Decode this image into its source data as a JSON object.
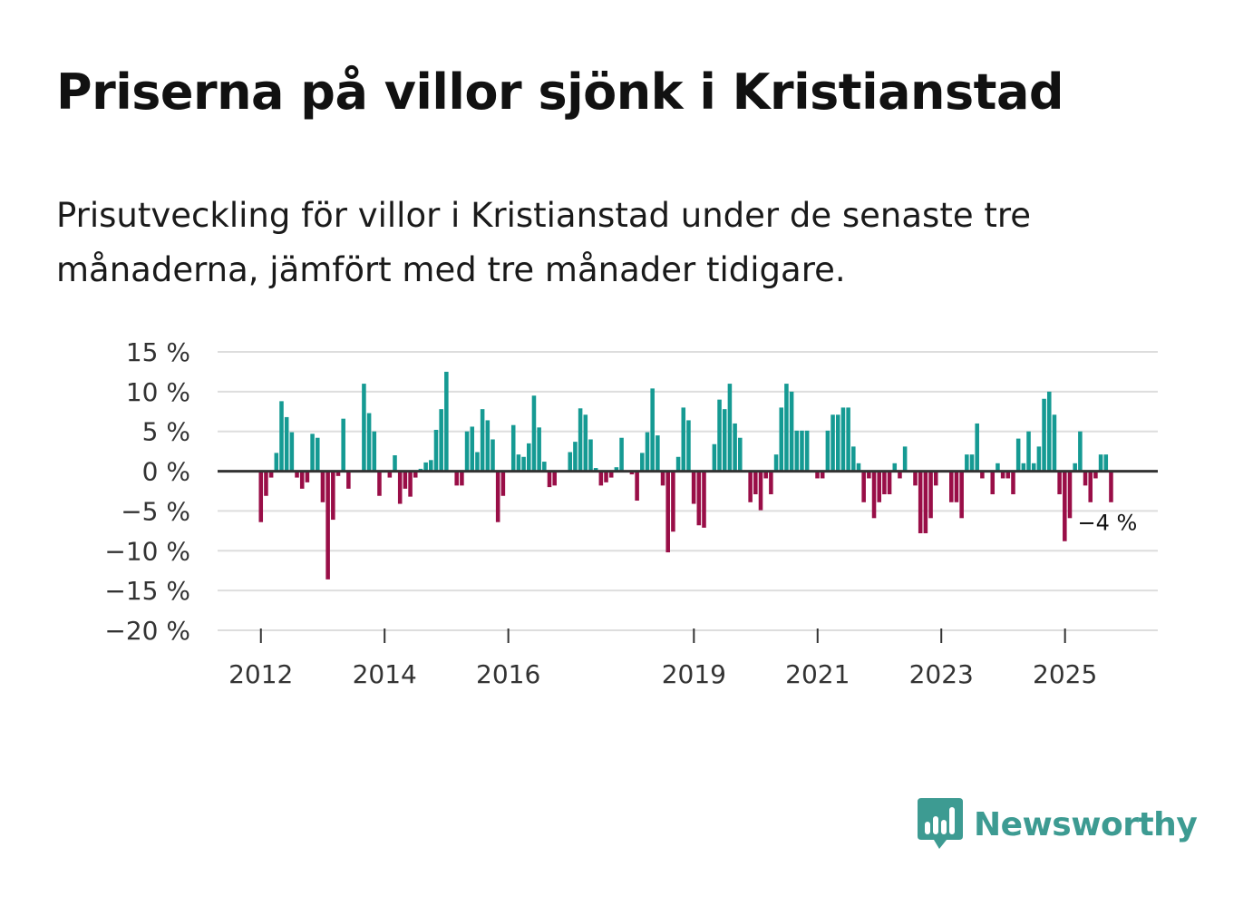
{
  "header": {
    "title": "Priserna på villor sjönk i Kristianstad",
    "subtitle": "Prisutveckling för villor i Kristianstad under de senaste tre månaderna, jämfört med tre månader tidigare."
  },
  "brand": {
    "name": "Newsworthy"
  },
  "colors": {
    "positive": "#159a93",
    "negative": "#990e47",
    "grid": "#dddddd",
    "zero": "#333333",
    "brand": "#3d9b92"
  },
  "chart_data": {
    "type": "bar",
    "title": "Priserna på villor sjönk i Kristianstad",
    "xlabel": "",
    "ylabel": "",
    "ylim": [
      -20,
      15
    ],
    "yticks": [
      15,
      10,
      5,
      0,
      -5,
      -10,
      -15,
      -20
    ],
    "ytick_labels": [
      "15 %",
      "10 %",
      "5 %",
      "0 %",
      "−5 %",
      "−10 %",
      "−15 %",
      "−20 %"
    ],
    "xlim": [
      2011.3,
      2026.5
    ],
    "xticks": [
      2012,
      2014,
      2016,
      2019,
      2021,
      2023,
      2025
    ],
    "xtick_labels": [
      "2012",
      "2014",
      "2016",
      "2019",
      "2021",
      "2023",
      "2025"
    ],
    "end_label": "−4 %",
    "start": 2012,
    "step": 0.0833,
    "values": [
      -6.4,
      -3.1,
      -0.8,
      2.3,
      8.8,
      6.8,
      4.9,
      -0.8,
      -2.2,
      -1.4,
      4.7,
      4.2,
      -3.9,
      -13.6,
      -6.1,
      -0.6,
      6.6,
      -2.2,
      null,
      null,
      11.0,
      7.3,
      5.0,
      -3.1,
      null,
      -0.8,
      2.0,
      -4.1,
      -2.2,
      -3.2,
      -0.8,
      0.3,
      1.1,
      1.4,
      5.2,
      7.8,
      12.5,
      null,
      -1.8,
      -1.8,
      5.0,
      5.6,
      2.4,
      7.8,
      6.4,
      4.0,
      -6.4,
      -3.1,
      null,
      5.8,
      2.1,
      1.8,
      3.5,
      9.5,
      5.5,
      1.2,
      -2.0,
      -1.8,
      null,
      null,
      2.4,
      3.7,
      7.9,
      7.1,
      4.0,
      0.4,
      -1.8,
      -1.4,
      -0.8,
      0.5,
      4.2,
      null,
      -0.4,
      -3.7,
      2.3,
      4.9,
      10.4,
      4.5,
      -1.8,
      -10.2,
      -7.6,
      1.8,
      8.0,
      6.4,
      -4.1,
      -6.8,
      -7.1,
      null,
      3.4,
      9.0,
      7.8,
      11.0,
      6.0,
      4.2,
      null,
      -3.9,
      -2.9,
      -4.9,
      -0.9,
      -2.9,
      2.1,
      8.0,
      11.0,
      10.0,
      5.1,
      5.1,
      5.1,
      null,
      -0.9,
      -0.9,
      5.1,
      7.1,
      7.1,
      8.0,
      8.0,
      3.1,
      1.0,
      -3.9,
      -0.9,
      -5.9,
      -3.9,
      -2.9,
      -2.9,
      1.0,
      -0.9,
      3.1,
      null,
      -1.8,
      -7.8,
      -7.8,
      -5.9,
      -1.8,
      null,
      null,
      -3.9,
      -3.9,
      -5.9,
      2.1,
      2.1,
      6.0,
      -0.9,
      null,
      -2.9,
      1.0,
      -0.9,
      -0.9,
      -2.9,
      4.1,
      1.0,
      5.0,
      1.0,
      3.1,
      9.1,
      10.0,
      7.1,
      -2.9,
      -8.8,
      -5.9,
      1.0,
      5.0,
      -1.8,
      -3.9,
      -0.9,
      2.1,
      2.1,
      -3.9
    ]
  }
}
